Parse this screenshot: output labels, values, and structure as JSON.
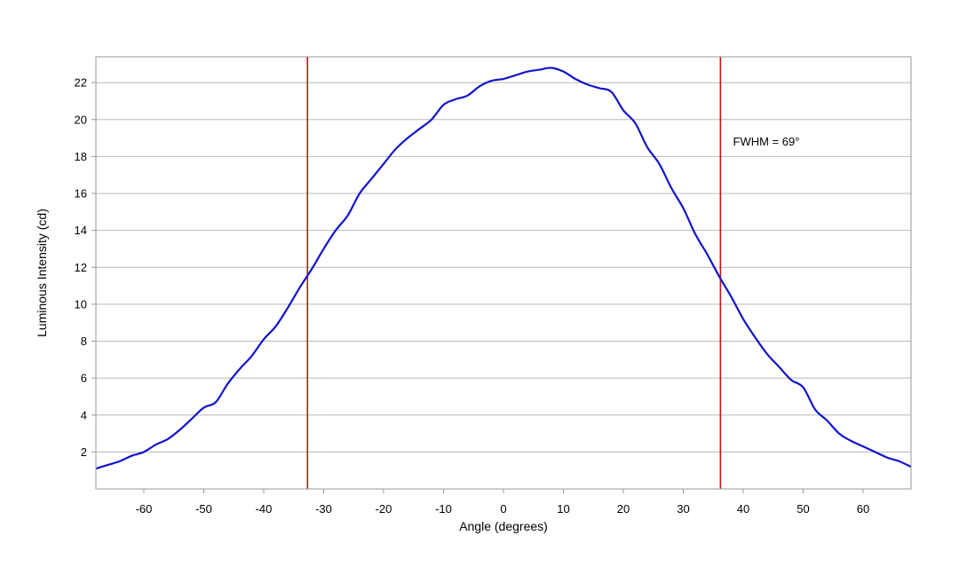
{
  "chart_data": {
    "type": "line",
    "title": "",
    "xlabel": "Angle (degrees)",
    "ylabel": "Luminous Intensity (cd)",
    "xlim": [
      -68,
      68
    ],
    "ylim": [
      0,
      23.4
    ],
    "x_ticks": [
      -60,
      -50,
      -40,
      -30,
      -20,
      -10,
      0,
      10,
      20,
      30,
      40,
      50,
      60
    ],
    "y_ticks": [
      2,
      4,
      6,
      8,
      10,
      12,
      14,
      16,
      18,
      20,
      22
    ],
    "grid": "horizontal",
    "series": [
      {
        "color": "#1414cc",
        "x": [
          -68,
          -66,
          -64,
          -62,
          -60,
          -58,
          -56,
          -54,
          -52,
          -50,
          -48,
          -46,
          -44,
          -42,
          -40,
          -38,
          -36,
          -34,
          -32,
          -30,
          -28,
          -26,
          -24,
          -22,
          -20,
          -18,
          -16,
          -14,
          -12,
          -10,
          -8,
          -6,
          -4,
          -2,
          0,
          2,
          4,
          6,
          8,
          10,
          12,
          14,
          16,
          18,
          20,
          22,
          24,
          26,
          28,
          30,
          32,
          34,
          36,
          38,
          40,
          42,
          44,
          46,
          48,
          50,
          52,
          54,
          56,
          58,
          60,
          62,
          64,
          66,
          68
        ],
        "y": [
          1.1,
          1.3,
          1.5,
          1.8,
          2.0,
          2.4,
          2.7,
          3.2,
          3.8,
          4.4,
          4.7,
          5.7,
          6.5,
          7.2,
          8.1,
          8.8,
          9.8,
          10.9,
          11.9,
          13.0,
          14.0,
          14.8,
          16.0,
          16.8,
          17.6,
          18.4,
          19.0,
          19.5,
          20.0,
          20.8,
          21.1,
          21.3,
          21.8,
          22.1,
          22.2,
          22.4,
          22.6,
          22.7,
          22.8,
          22.6,
          22.2,
          21.9,
          21.7,
          21.5,
          20.5,
          19.8,
          18.5,
          17.6,
          16.3,
          15.2,
          13.8,
          12.7,
          11.5,
          10.4,
          9.2,
          8.2,
          7.3,
          6.6,
          5.9,
          5.5,
          4.3,
          3.7,
          3.0,
          2.6,
          2.3,
          2.0,
          1.7,
          1.5,
          1.2
        ]
      }
    ],
    "vlines": [
      {
        "x": -32.7,
        "color": "#cc1111"
      },
      {
        "x": 36.2,
        "color": "#cc1111"
      }
    ],
    "annotations": [
      {
        "text": "FWHM = 69°",
        "x": 38.3,
        "y": 18.6
      }
    ]
  }
}
